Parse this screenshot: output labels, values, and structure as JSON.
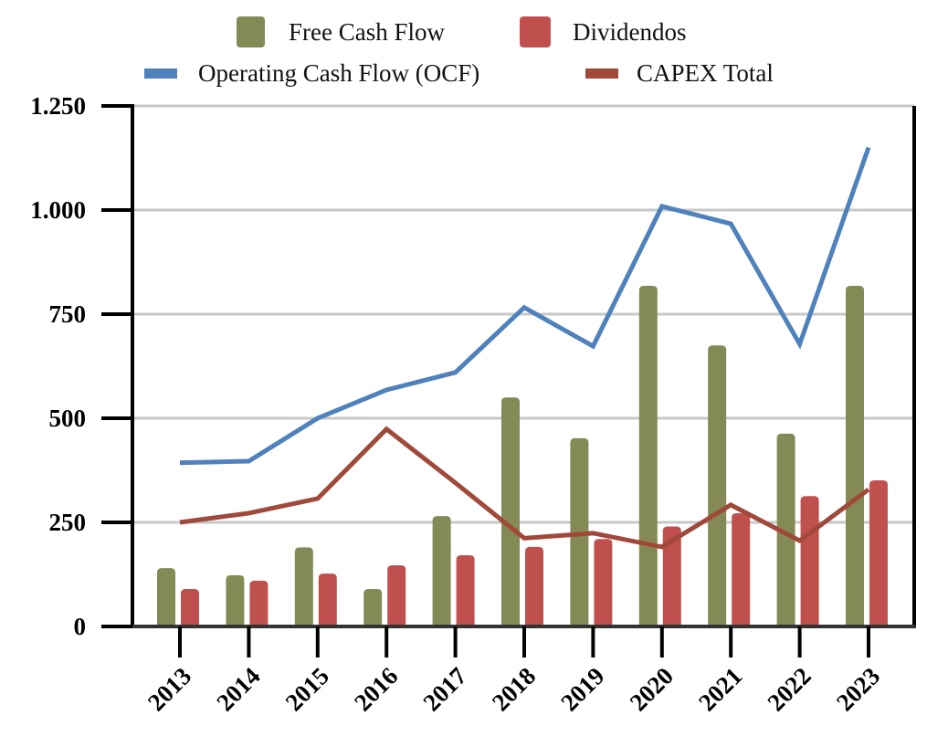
{
  "chart_data": {
    "type": "bar",
    "title": "",
    "xlabel": "",
    "ylabel": "",
    "ylim": [
      0,
      1250
    ],
    "yticks": [
      0,
      250,
      500,
      750,
      1000,
      1250
    ],
    "ytick_labels": [
      "0",
      "250",
      "500",
      "750",
      "1.000",
      "1.250"
    ],
    "grid": true,
    "legend_position": "top-center",
    "categories": [
      "2013",
      "2014",
      "2015",
      "2016",
      "2017",
      "2018",
      "2019",
      "2020",
      "2021",
      "2022",
      "2023"
    ],
    "series": [
      {
        "name": "Free Cash Flow",
        "kind": "bar",
        "color": "#848A55",
        "values": [
          140,
          123,
          190,
          90,
          265,
          550,
          452,
          818,
          675,
          463,
          818
        ]
      },
      {
        "name": "Dividendos",
        "kind": "bar",
        "color": "#C0504D",
        "values": [
          90,
          110,
          127,
          147,
          171,
          191,
          210,
          240,
          272,
          313,
          351
        ]
      },
      {
        "name": "Operating Cash Flow (OCF)",
        "kind": "line",
        "color": "#4F81BD",
        "values": [
          393,
          397,
          500,
          568,
          610,
          766,
          673,
          1009,
          967,
          678,
          1150
        ]
      },
      {
        "name": "CAPEX Total",
        "kind": "line",
        "color": "#A0493B",
        "values": [
          250,
          272,
          307,
          474,
          345,
          212,
          224,
          191,
          292,
          206,
          329
        ]
      }
    ]
  },
  "legend": {
    "row1": [
      "Free Cash Flow",
      "Dividendos"
    ],
    "row2": [
      "Operating Cash Flow (OCF)",
      "CAPEX Total"
    ]
  }
}
